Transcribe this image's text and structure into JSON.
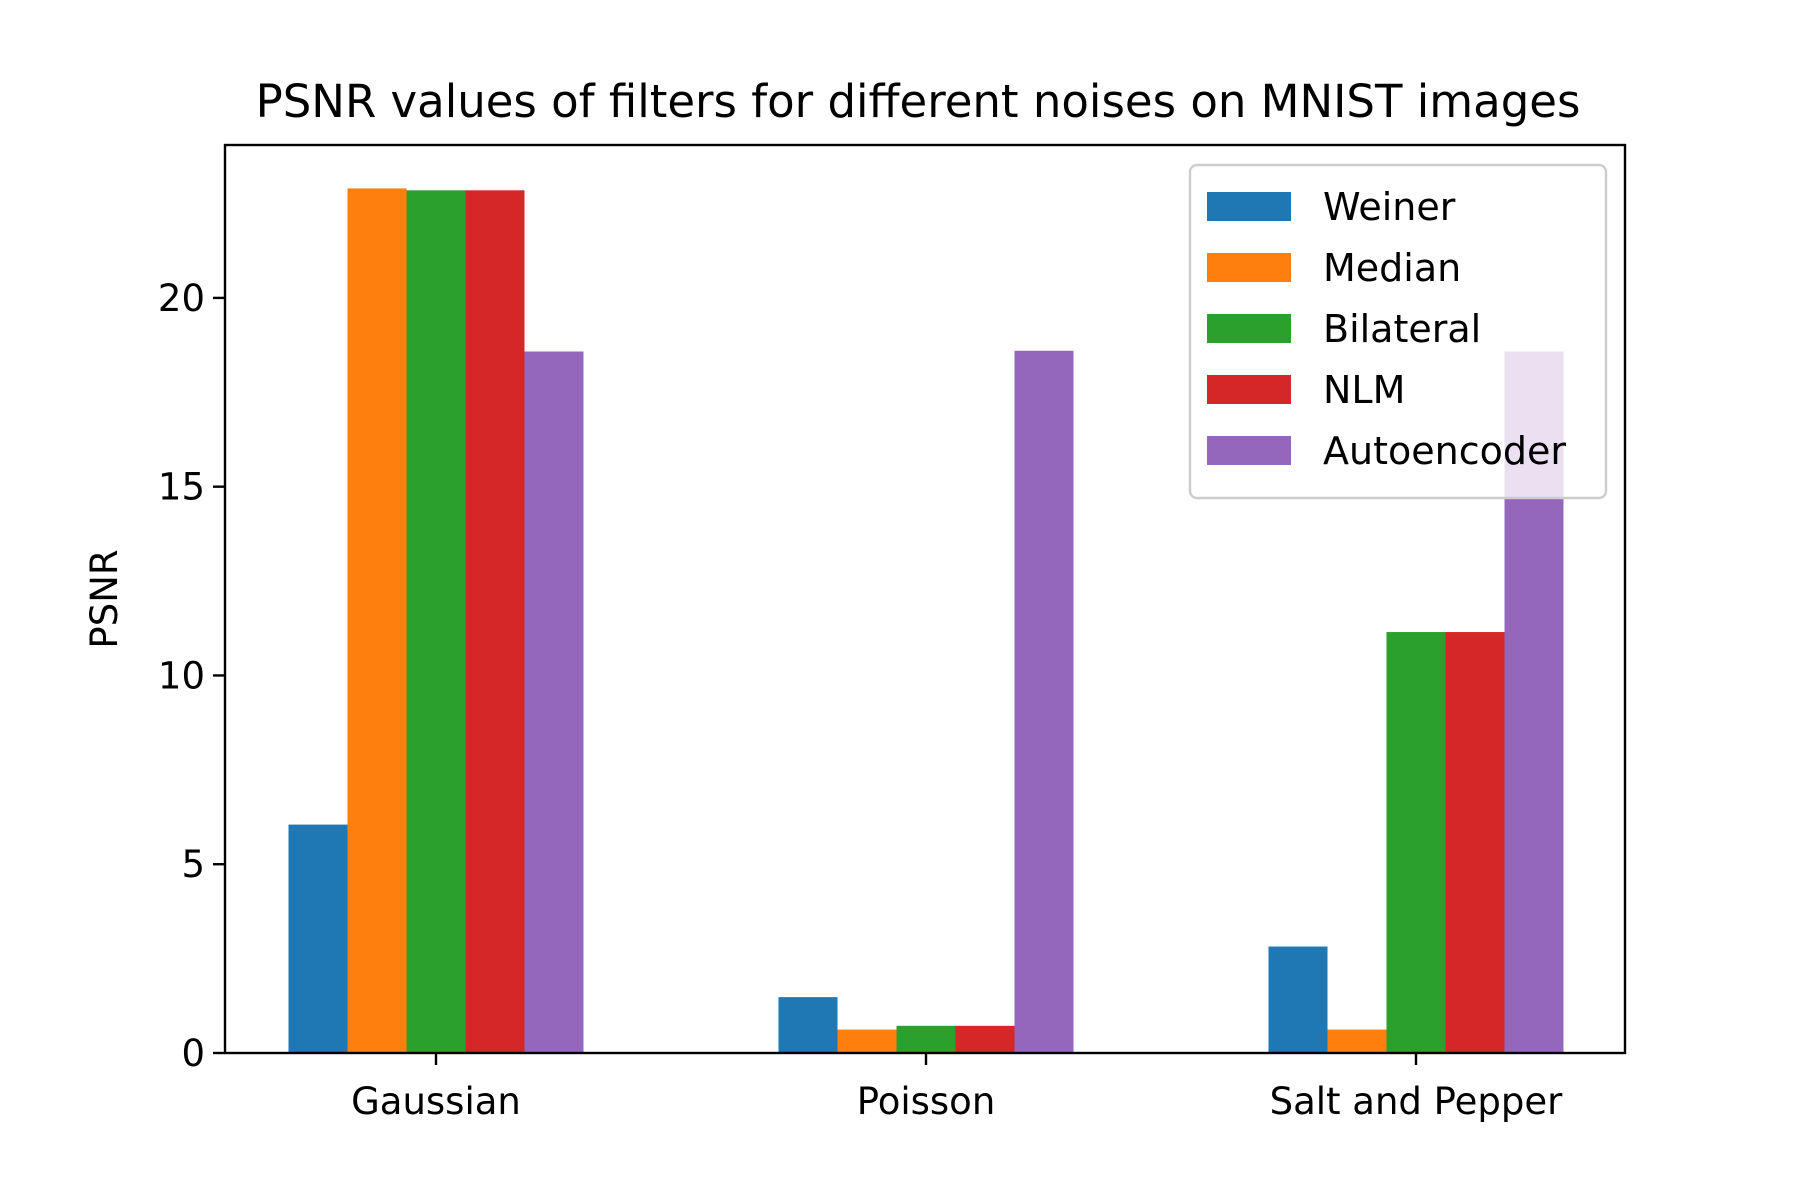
{
  "chart_data": {
    "type": "bar",
    "title": "PSNR values of filters for different noises on MNIST images",
    "xlabel": "",
    "ylabel": "PSNR",
    "categories": [
      "Gaussian",
      "Poisson",
      "Salt and Pepper"
    ],
    "ylim": [
      0,
      24.05
    ],
    "yticks": [
      "0",
      "5",
      "10",
      "15",
      "20"
    ],
    "legend_position": "top-right",
    "grid": false,
    "series": [
      {
        "name": "Weiner",
        "color": "#1f77b4",
        "values": [
          6.05,
          1.48,
          2.82
        ]
      },
      {
        "name": "Median",
        "color": "#ff7f0e",
        "values": [
          22.9,
          0.62,
          0.62
        ]
      },
      {
        "name": "Bilateral",
        "color": "#2ca02c",
        "values": [
          22.85,
          0.72,
          11.15
        ]
      },
      {
        "name": "NLM",
        "color": "#d62728",
        "values": [
          22.85,
          0.72,
          11.15
        ]
      },
      {
        "name": "Autoencoder",
        "color": "#9467bd",
        "values": [
          18.58,
          18.6,
          18.58
        ]
      }
    ]
  }
}
